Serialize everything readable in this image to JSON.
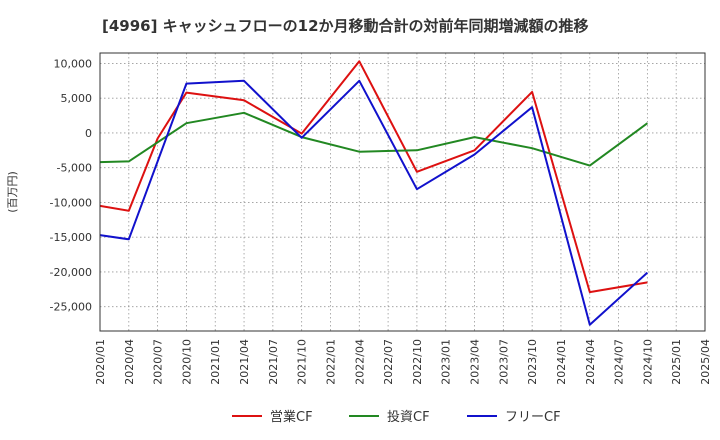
{
  "chart_data": {
    "type": "line",
    "title": "[4996]  キャッシュフローの12か月移動合計の対前年同期増減額の推移",
    "ylabel": "(百万円)",
    "xlabel": "",
    "ylim": [
      -28500,
      11500
    ],
    "yticks": [
      10000,
      5000,
      0,
      -5000,
      -10000,
      -15000,
      -20000,
      -25000
    ],
    "ytick_labels": [
      "10,000",
      "5,000",
      "0",
      "-5,000",
      "-10,000",
      "-15,000",
      "-20,000",
      "-25,000"
    ],
    "categories": [
      "2020/01",
      "2020/04",
      "2020/07",
      "2020/10",
      "2021/01",
      "2021/04",
      "2021/07",
      "2021/10",
      "2022/01",
      "2022/04",
      "2022/07",
      "2022/10",
      "2023/01",
      "2023/04",
      "2023/07",
      "2023/10",
      "2024/01",
      "2024/04",
      "2024/07",
      "2024/10",
      "2025/01",
      "2025/04"
    ],
    "grid": true,
    "legend_position": "bottom",
    "series": [
      {
        "name": "営業CF",
        "color": "#dd1111",
        "values": [
          -10500,
          -11200,
          -800,
          5800,
          null,
          4700,
          null,
          -100,
          null,
          10300,
          null,
          -5600,
          null,
          -2500,
          null,
          5900,
          null,
          -22900,
          null,
          -21500,
          null,
          null
        ]
      },
      {
        "name": "投資CF",
        "color": "#228822",
        "values": [
          -4200,
          -4100,
          null,
          1400,
          null,
          2900,
          null,
          -600,
          null,
          -2700,
          null,
          -2500,
          null,
          -600,
          null,
          -2200,
          null,
          -4700,
          null,
          1400,
          null,
          null
        ]
      },
      {
        "name": "フリーCF",
        "color": "#1111cc",
        "values": [
          -14700,
          -15300,
          null,
          7100,
          null,
          7500,
          null,
          -700,
          null,
          7500,
          null,
          -8100,
          null,
          -3100,
          null,
          3700,
          null,
          -27600,
          null,
          -20100,
          null,
          null
        ]
      }
    ]
  }
}
